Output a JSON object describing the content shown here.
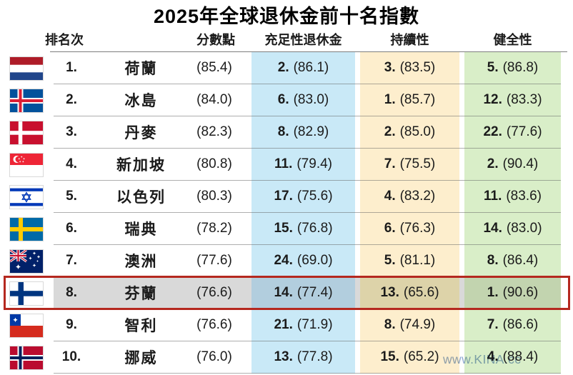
{
  "title": "2025年全球退休金前十名指數",
  "watermark": "www.KINA.cc",
  "chart_data": {
    "type": "table",
    "title": "2025年全球退休金前十名指數",
    "column_headers": {
      "rank": "排名次",
      "score": "分數點",
      "adequacy": "充足性退休金",
      "sustainability": "持續性",
      "integrity": "健全性"
    },
    "highlighted_country": "芬蘭",
    "colors": {
      "adequacy_band": "#c9e9f7",
      "sustainability_band": "#fdeecd",
      "integrity_band": "#d9eec8",
      "highlight_gray": "#d9d9d9",
      "highlight_adequacy": "#b2cede",
      "highlight_sustainability": "#ddd3a9",
      "highlight_integrity": "#c2d4af",
      "highlight_border": "#b5281f",
      "watermark_color": "#8fa9d1"
    },
    "rows": [
      {
        "rank": "1.",
        "flag": "netherlands",
        "country": "荷蘭",
        "score": "(85.4)",
        "adequacy_rank": "2.",
        "adequacy_score": "(86.1)",
        "sustainability_rank": "3.",
        "sustainability_score": "(83.5)",
        "integrity_rank": "5.",
        "integrity_score": "(86.8)",
        "highlight": false
      },
      {
        "rank": "2.",
        "flag": "iceland",
        "country": "冰島",
        "score": "(84.0)",
        "adequacy_rank": "6.",
        "adequacy_score": "(83.0)",
        "sustainability_rank": "1.",
        "sustainability_score": "(85.7)",
        "integrity_rank": "12.",
        "integrity_score": "(83.3)",
        "highlight": false
      },
      {
        "rank": "3.",
        "flag": "denmark",
        "country": "丹麥",
        "score": "(82.3)",
        "adequacy_rank": "8.",
        "adequacy_score": "(82.9)",
        "sustainability_rank": "2.",
        "sustainability_score": "(85.0)",
        "integrity_rank": "22.",
        "integrity_score": "(77.6)",
        "highlight": false
      },
      {
        "rank": "4.",
        "flag": "singapore",
        "country": "新加坡",
        "score": "(80.8)",
        "adequacy_rank": "11.",
        "adequacy_score": "(79.4)",
        "sustainability_rank": "7.",
        "sustainability_score": "(75.5)",
        "integrity_rank": "2.",
        "integrity_score": "(90.4)",
        "highlight": false
      },
      {
        "rank": "5.",
        "flag": "israel",
        "country": "以色列",
        "score": "(80.3)",
        "adequacy_rank": "17.",
        "adequacy_score": "(75.6)",
        "sustainability_rank": "4.",
        "sustainability_score": "(83.2)",
        "integrity_rank": "11.",
        "integrity_score": "(83.6)",
        "highlight": false
      },
      {
        "rank": "6.",
        "flag": "sweden",
        "country": "瑞典",
        "score": "(78.2)",
        "adequacy_rank": "15.",
        "adequacy_score": "(76.8)",
        "sustainability_rank": "6.",
        "sustainability_score": "(76.3)",
        "integrity_rank": "14.",
        "integrity_score": "(83.0)",
        "highlight": false
      },
      {
        "rank": "7.",
        "flag": "australia",
        "country": "澳洲",
        "score": "(77.6)",
        "adequacy_rank": "24.",
        "adequacy_score": "(69.0)",
        "sustainability_rank": "5.",
        "sustainability_score": "(81.1)",
        "integrity_rank": "8.",
        "integrity_score": "(86.4)",
        "highlight": false
      },
      {
        "rank": "8.",
        "flag": "finland",
        "country": "芬蘭",
        "score": "(76.6)",
        "adequacy_rank": "14.",
        "adequacy_score": "(77.4)",
        "sustainability_rank": "13.",
        "sustainability_score": "(65.6)",
        "integrity_rank": "1.",
        "integrity_score": "(90.6)",
        "highlight": true
      },
      {
        "rank": "9.",
        "flag": "chile",
        "country": "智利",
        "score": "(76.6)",
        "adequacy_rank": "21.",
        "adequacy_score": "(71.9)",
        "sustainability_rank": "8.",
        "sustainability_score": "(74.9)",
        "integrity_rank": "7.",
        "integrity_score": "(86.6)",
        "highlight": false
      },
      {
        "rank": "10.",
        "flag": "norway",
        "country": "挪威",
        "score": "(76.0)",
        "adequacy_rank": "13.",
        "adequacy_score": "(77.8)",
        "sustainability_rank": "15.",
        "sustainability_score": "(65.2)",
        "integrity_rank": "4.",
        "integrity_score": "(88.4)",
        "highlight": false
      }
    ]
  }
}
